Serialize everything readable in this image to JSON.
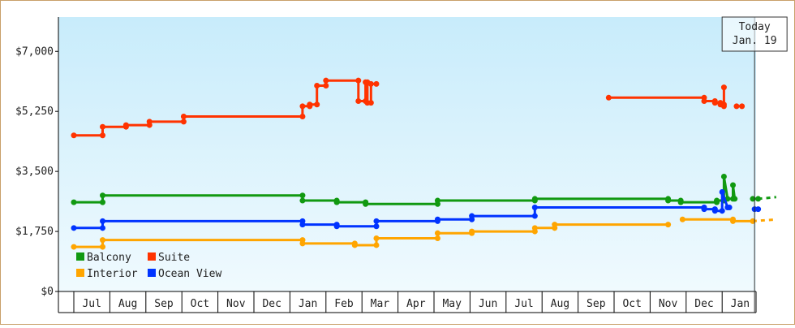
{
  "chart_data": {
    "type": "line",
    "y_ticks": [
      "$0",
      "$1,750",
      "$3,500",
      "$5,250",
      "$7,000"
    ],
    "y_values": [
      0,
      1750,
      3500,
      5250,
      7000
    ],
    "ylim": [
      0,
      8000
    ],
    "x_tick_labels": [
      "Jul",
      "Aug",
      "Sep",
      "Oct",
      "Nov",
      "Dec",
      "Jan",
      "Feb",
      "Mar",
      "Apr",
      "May",
      "Jun",
      "Jul",
      "Aug",
      "Sep",
      "Oct",
      "Nov",
      "Dec",
      "Jan"
    ],
    "xlim": [
      0,
      19.5
    ],
    "today": {
      "line1": "Today",
      "line2": "Jan. 19",
      "x": 18.9
    },
    "grid": false,
    "legend_position": "bottom-left",
    "colors": {
      "background_top": "#c8ecfb",
      "background_bottom": "#f0fafe",
      "frame": "#c9a06a"
    },
    "series": [
      {
        "name": "Suite",
        "color": "#ff3300",
        "segments": [
          [
            [
              0.0,
              4550
            ],
            [
              0.8,
              4550
            ],
            [
              0.8,
              4800
            ],
            [
              1.45,
              4800
            ],
            [
              1.45,
              4850
            ],
            [
              2.1,
              4850
            ],
            [
              2.1,
              4950
            ],
            [
              3.05,
              4950
            ],
            [
              3.05,
              5100
            ],
            [
              6.35,
              5100
            ],
            [
              6.35,
              5400
            ],
            [
              6.55,
              5400
            ],
            [
              6.55,
              5450
            ],
            [
              6.75,
              5450
            ],
            [
              6.75,
              6000
            ],
            [
              7.0,
              6000
            ],
            [
              7.0,
              6150
            ],
            [
              7.4,
              6150
            ],
            [
              7.4,
              6150
            ],
            [
              7.9,
              6150
            ],
            [
              7.9,
              5550
            ],
            [
              8.1,
              5550
            ],
            [
              8.1,
              6100
            ],
            [
              8.15,
              6100
            ],
            [
              8.15,
              5500
            ],
            [
              8.25,
              5500
            ],
            [
              8.25,
              6050
            ],
            [
              8.4,
              6050
            ]
          ],
          [
            [
              14.85,
              5650
            ],
            [
              16.5,
              5650
            ],
            [
              16.5,
              5650
            ],
            [
              16.85,
              5650
            ],
            [
              16.85,
              5650
            ],
            [
              17.5,
              5650
            ],
            [
              17.5,
              5550
            ],
            [
              17.8,
              5550
            ],
            [
              17.8,
              5500
            ],
            [
              17.95,
              5500
            ],
            [
              17.95,
              5450
            ],
            [
              18.05,
              5450
            ],
            [
              18.05,
              5950
            ],
            [
              18.05,
              5400
            ]
          ],
          [
            [
              18.4,
              5400
            ],
            [
              18.55,
              5400
            ]
          ]
        ]
      },
      {
        "name": "Balcony",
        "color": "#119911",
        "segments": [
          [
            [
              0.0,
              2600
            ],
            [
              0.8,
              2600
            ],
            [
              0.8,
              2800
            ],
            [
              6.35,
              2800
            ],
            [
              6.35,
              2650
            ],
            [
              7.3,
              2650
            ],
            [
              7.3,
              2600
            ],
            [
              8.1,
              2600
            ],
            [
              8.1,
              2550
            ],
            [
              8.4,
              2550
            ],
            [
              8.4,
              2550
            ],
            [
              10.1,
              2550
            ],
            [
              10.1,
              2650
            ],
            [
              11.05,
              2650
            ],
            [
              11.05,
              2650
            ],
            [
              12.8,
              2650
            ],
            [
              12.8,
              2700
            ],
            [
              13.35,
              2700
            ],
            [
              13.35,
              2700
            ],
            [
              16.5,
              2700
            ],
            [
              16.5,
              2650
            ],
            [
              16.85,
              2650
            ],
            [
              16.85,
              2600
            ],
            [
              17.5,
              2600
            ],
            [
              17.5,
              2600
            ],
            [
              17.85,
              2600
            ],
            [
              17.85,
              2650
            ],
            [
              18.05,
              2650
            ],
            [
              18.05,
              3350
            ],
            [
              18.15,
              2700
            ],
            [
              18.3,
              2700
            ],
            [
              18.3,
              3100
            ],
            [
              18.35,
              2700
            ]
          ],
          [
            [
              18.85,
              2700
            ],
            [
              19.0,
              2700
            ]
          ]
        ],
        "forecast": [
          [
            19.0,
            2700
          ],
          [
            19.5,
            2750
          ]
        ]
      },
      {
        "name": "Ocean View",
        "color": "#0033ff",
        "segments": [
          [
            [
              0.0,
              1850
            ],
            [
              0.8,
              1850
            ],
            [
              0.8,
              2050
            ],
            [
              6.35,
              2050
            ],
            [
              6.35,
              1950
            ],
            [
              7.3,
              1950
            ],
            [
              7.3,
              1900
            ],
            [
              8.4,
              1900
            ],
            [
              8.4,
              2050
            ],
            [
              10.1,
              2050
            ],
            [
              10.1,
              2100
            ],
            [
              11.05,
              2100
            ],
            [
              11.05,
              2200
            ],
            [
              12.8,
              2200
            ],
            [
              12.8,
              2450
            ],
            [
              16.85,
              2450
            ],
            [
              16.85,
              2450
            ],
            [
              17.5,
              2450
            ],
            [
              17.5,
              2400
            ],
            [
              17.8,
              2400
            ],
            [
              17.8,
              2350
            ],
            [
              18.0,
              2350
            ],
            [
              18.0,
              2900
            ],
            [
              18.15,
              2450
            ],
            [
              18.2,
              2450
            ]
          ],
          [
            [
              18.9,
              2400
            ],
            [
              19.0,
              2400
            ]
          ]
        ]
      },
      {
        "name": "Interior",
        "color": "#ffa500",
        "segments": [
          [
            [
              0.0,
              1300
            ],
            [
              0.8,
              1300
            ],
            [
              0.8,
              1500
            ],
            [
              6.35,
              1500
            ],
            [
              6.35,
              1400
            ],
            [
              7.8,
              1400
            ],
            [
              7.8,
              1350
            ],
            [
              8.4,
              1350
            ],
            [
              8.4,
              1550
            ],
            [
              10.1,
              1550
            ],
            [
              10.1,
              1700
            ],
            [
              11.05,
              1700
            ],
            [
              11.05,
              1750
            ],
            [
              12.8,
              1750
            ],
            [
              12.8,
              1850
            ],
            [
              13.35,
              1850
            ],
            [
              13.35,
              1950
            ],
            [
              16.5,
              1950
            ]
          ],
          [
            [
              16.9,
              2100
            ],
            [
              18.3,
              2100
            ],
            [
              18.3,
              2050
            ],
            [
              18.85,
              2050
            ]
          ]
        ],
        "forecast": [
          [
            18.85,
            2050
          ],
          [
            19.5,
            2100
          ]
        ]
      }
    ],
    "legend": [
      {
        "name": "Balcony",
        "color": "#119911"
      },
      {
        "name": "Suite",
        "color": "#ff3300"
      },
      {
        "name": "Interior",
        "color": "#ffa500"
      },
      {
        "name": "Ocean View",
        "color": "#0033ff"
      }
    ]
  }
}
